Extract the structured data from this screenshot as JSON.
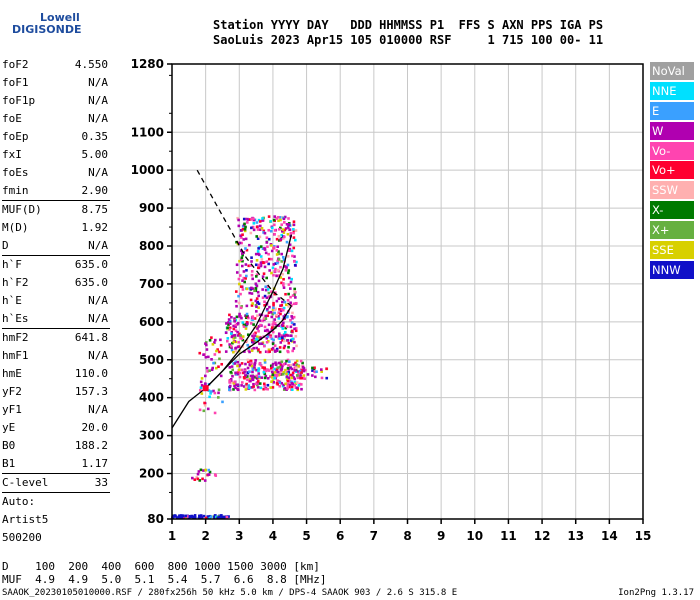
{
  "logo": {
    "line1": "Lowell",
    "line2": "DIGISONDE",
    "color": "#1e4c9e"
  },
  "header": {
    "line1": "Station YYYY DAY   DDD HHMMSS P1  FFS S AXN PPS IGA PS",
    "line2": "SaoLuis 2023 Apr15 105 010000 RSF     1 715 100 00- 11"
  },
  "params": {
    "group1": [
      {
        "label": "foF2",
        "value": "4.550"
      },
      {
        "label": "foF1",
        "value": "N/A"
      },
      {
        "label": "foF1p",
        "value": "N/A"
      },
      {
        "label": "foE",
        "value": "N/A"
      },
      {
        "label": "foEp",
        "value": "0.35"
      },
      {
        "label": "fxI",
        "value": "5.00"
      },
      {
        "label": "foEs",
        "value": "N/A"
      },
      {
        "label": "fmin",
        "value": "2.90"
      }
    ],
    "group2": [
      {
        "label": "MUF(D)",
        "value": "8.75"
      },
      {
        "label": "M(D)",
        "value": "1.92"
      },
      {
        "label": "D",
        "value": "N/A"
      }
    ],
    "group3": [
      {
        "label": "h`F",
        "value": "635.0"
      },
      {
        "label": "h`F2",
        "value": "635.0"
      },
      {
        "label": "h`E",
        "value": "N/A"
      },
      {
        "label": "h`Es",
        "value": "N/A"
      }
    ],
    "group4": [
      {
        "label": "hmF2",
        "value": "641.8"
      },
      {
        "label": "hmF1",
        "value": "N/A"
      },
      {
        "label": "hmE",
        "value": "110.0"
      },
      {
        "label": "yF2",
        "value": "157.3"
      },
      {
        "label": "yF1",
        "value": "N/A"
      },
      {
        "label": "yE",
        "value": "20.0"
      },
      {
        "label": "B0",
        "value": "188.2"
      },
      {
        "label": "B1",
        "value": "1.17"
      }
    ],
    "clevel": {
      "label": "C-level",
      "value": "33"
    },
    "auto": [
      "Auto:",
      "Artist5",
      "500200"
    ]
  },
  "legend": [
    {
      "label": "NoVal",
      "color": "#a0a0a0"
    },
    {
      "label": "NNE",
      "color": "#00e0ff"
    },
    {
      "label": "E",
      "color": "#3aa0ff"
    },
    {
      "label": "W",
      "color": "#b000b0"
    },
    {
      "label": "Vo-",
      "color": "#ff44b0"
    },
    {
      "label": "Vo+",
      "color": "#ff0030"
    },
    {
      "label": "SSW",
      "color": "#ffb0b0"
    },
    {
      "label": "X-",
      "color": "#007a00"
    },
    {
      "label": "X+",
      "color": "#66b040"
    },
    {
      "label": "SSE",
      "color": "#d8d000"
    },
    {
      "label": "NNW",
      "color": "#1010c8"
    }
  ],
  "muf_table": {
    "d_label": "D",
    "d_values": "100  200  400  600  800 1000 1500 3000 [km]",
    "muf_label": "MUF",
    "muf_values": "4.9  4.9  5.0  5.1  5.4  5.7  6.6  8.8 [MHz]"
  },
  "footer": {
    "left": "SAAOK_20230105010000.RSF / 280fx256h 50 kHz 5.0 km / DPS-4 SAAOK 903 / 2.6 S 315.8 E",
    "right": "Ion2Png 1.3.17"
  },
  "chart_data": {
    "type": "scatter",
    "xlim": [
      1,
      15
    ],
    "ylim": [
      80,
      1280
    ],
    "x_ticks": [
      1,
      2,
      3,
      4,
      5,
      6,
      7,
      8,
      9,
      10,
      11,
      12,
      13,
      14,
      15
    ],
    "y_ticks": [
      80,
      200,
      300,
      400,
      500,
      600,
      700,
      800,
      900,
      1000,
      1100,
      1280
    ],
    "grid": true,
    "profile_line": [
      [
        1.0,
        320
      ],
      [
        1.5,
        390
      ],
      [
        2.0,
        425
      ],
      [
        2.5,
        470
      ],
      [
        3.0,
        515
      ],
      [
        3.5,
        545
      ],
      [
        4.0,
        578
      ],
      [
        4.3,
        605
      ],
      [
        4.55,
        641.8
      ]
    ],
    "trace_line": [
      [
        2.0,
        425
      ],
      [
        2.5,
        470
      ],
      [
        3.0,
        525
      ],
      [
        3.5,
        590
      ],
      [
        4.0,
        680
      ],
      [
        4.3,
        740
      ],
      [
        4.55,
        830
      ]
    ],
    "topside_dashed": [
      [
        1.75,
        1000
      ],
      [
        2.5,
        880
      ],
      [
        3.2,
        770
      ],
      [
        4.0,
        680
      ],
      [
        4.55,
        641.8
      ]
    ],
    "echo_clusters": [
      {
        "xr": [
          2.7,
          4.9
        ],
        "yr": [
          420,
          500
        ],
        "n": 320
      },
      {
        "xr": [
          2.6,
          4.7
        ],
        "yr": [
          520,
          620
        ],
        "n": 280
      },
      {
        "xr": [
          2.9,
          4.7
        ],
        "yr": [
          620,
          880
        ],
        "n": 380
      },
      {
        "xr": [
          1.0,
          2.7
        ],
        "yr": [
          82,
          90
        ],
        "n": 80
      },
      {
        "xr": [
          1.8,
          2.5
        ],
        "yr": [
          350,
          560
        ],
        "n": 60
      },
      {
        "xr": [
          1.6,
          2.3
        ],
        "yr": [
          180,
          210
        ],
        "n": 20
      },
      {
        "xr": [
          4.7,
          5.6
        ],
        "yr": [
          450,
          480
        ],
        "n": 25
      }
    ]
  }
}
